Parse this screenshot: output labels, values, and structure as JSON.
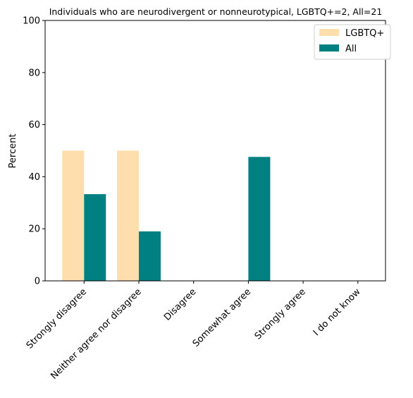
{
  "chart_data": {
    "type": "bar",
    "title": "Individuals who are neurodivergent or nonneurotypical, LGBTQ+=2, All=21",
    "xlabel": "",
    "ylabel": "Percent",
    "ylim": [
      0,
      100
    ],
    "yticks": [
      0,
      20,
      40,
      60,
      80,
      100
    ],
    "categories": [
      "Strongly disagree",
      "Neither agree nor disagree",
      "Disagree",
      "Somewhat agree",
      "Strongly agree",
      "I do not know"
    ],
    "series": [
      {
        "name": "LGBTQ+",
        "color": "#ffdead",
        "values": [
          50,
          50,
          0,
          0,
          0,
          0
        ]
      },
      {
        "name": "All",
        "color": "#008080",
        "values": [
          33.3,
          19.0,
          0,
          47.6,
          0,
          0
        ]
      }
    ],
    "legend": {
      "position": "top-right"
    },
    "grid": false
  }
}
